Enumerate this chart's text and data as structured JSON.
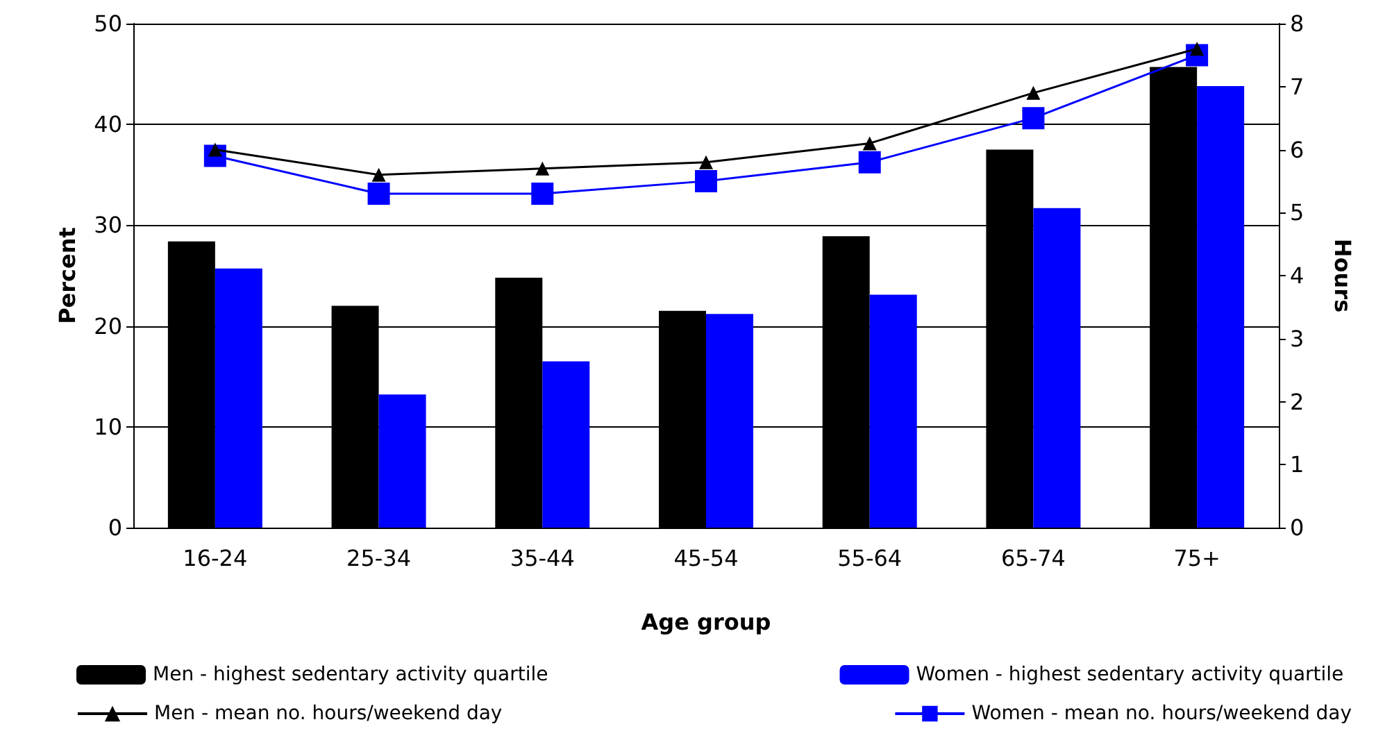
{
  "chart_data": {
    "type": "bar",
    "xlabel": "Age group",
    "ylabel": "Percent",
    "y2label": "Hours",
    "categories": [
      "16-24",
      "25-34",
      "35-44",
      "45-54",
      "55-64",
      "65-74",
      "75+"
    ],
    "series": [
      {
        "name": "Men - highest sedentary activity quartile",
        "color": "#000000",
        "values": [
          28.4,
          22.0,
          24.8,
          21.5,
          28.9,
          37.5,
          45.7
        ]
      },
      {
        "name": "Women - highest sedentary activity quartile",
        "color": "#0000ff",
        "values": [
          25.7,
          13.2,
          16.5,
          21.2,
          23.1,
          31.7,
          43.8
        ]
      },
      {
        "name": "Men - mean no. hours/weekend day",
        "type": "line",
        "axis": "y2",
        "marker": "triangle",
        "color": "#000000",
        "values": [
          6.0,
          5.6,
          5.7,
          5.8,
          6.1,
          6.9,
          7.6
        ]
      },
      {
        "name": "Women - mean no. hours/weekend day",
        "type": "line",
        "axis": "y2",
        "marker": "square",
        "color": "#0000ff",
        "values": [
          5.9,
          5.3,
          5.3,
          5.5,
          5.8,
          6.5,
          7.5
        ]
      }
    ],
    "ylim": [
      0,
      50
    ],
    "yticks": [
      0,
      10,
      20,
      30,
      40,
      50
    ],
    "y2lim": [
      0,
      8
    ],
    "y2ticks": [
      0,
      1,
      2,
      3,
      4,
      5,
      6,
      7,
      8
    ],
    "grid": "y",
    "legend": "bottom"
  }
}
